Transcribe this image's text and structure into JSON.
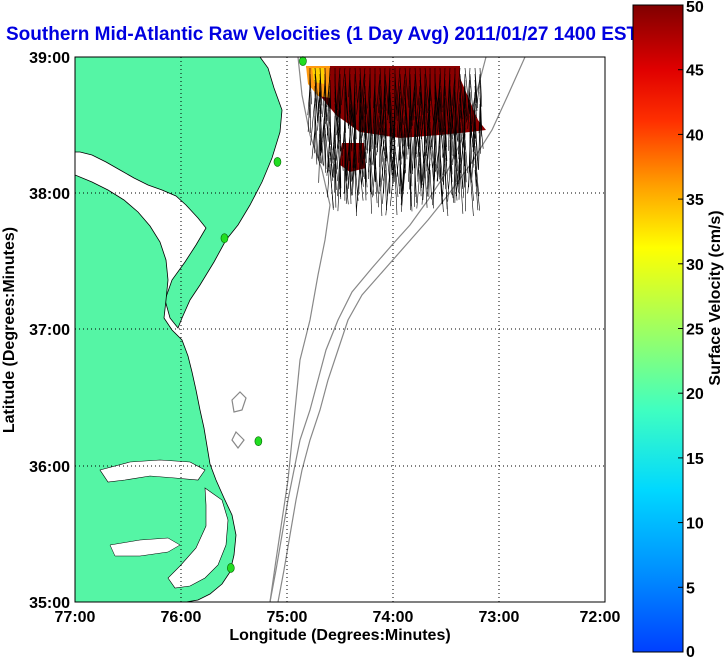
{
  "title": "Southern Mid-Atlantic Raw Velocities (1 Day Avg) 2011/01/27 1400 EST",
  "map": {
    "xlabel": "Longitude (Degrees:Minutes)",
    "ylabel": "Latitude (Degrees:Minutes)",
    "x_ticks": [
      "77:00",
      "76:00",
      "75:00",
      "74:00",
      "73:00",
      "72:00"
    ],
    "y_ticks": [
      "39:00",
      "38:00",
      "37:00",
      "36:00",
      "35:00"
    ],
    "xlim": [
      -77,
      -72
    ],
    "ylim": [
      35,
      39
    ],
    "grid": true,
    "land_color": "#55f5a5",
    "ocean_color": "#ffffff",
    "vector_color": "#000000",
    "station_color": "#22dd22"
  },
  "colorbar": {
    "label": "Surface Velocity (cm/s)",
    "ticks": [
      "0",
      "5",
      "10",
      "15",
      "20",
      "25",
      "30",
      "35",
      "40",
      "45",
      "50"
    ],
    "range": [
      0,
      50
    ],
    "colormap": "jet"
  },
  "stations": [
    {
      "lon": -74.85,
      "lat": 38.97
    },
    {
      "lon": -75.09,
      "lat": 38.23
    },
    {
      "lon": -75.59,
      "lat": 37.67
    },
    {
      "lon": -75.27,
      "lat": 36.18
    },
    {
      "lon": -75.53,
      "lat": 35.25
    }
  ]
}
